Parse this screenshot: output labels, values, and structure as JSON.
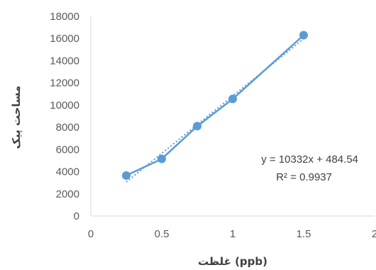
{
  "chart_data": {
    "type": "scatter",
    "x": [
      0.25,
      0.5,
      0.75,
      1,
      1.5
    ],
    "y": [
      3650,
      5150,
      8100,
      10550,
      16300
    ],
    "series": [
      {
        "values": [
          3650,
          5150,
          8100,
          10550,
          16300
        ]
      }
    ],
    "trendline": {
      "slope": 10332,
      "intercept": 484.54,
      "x_range": [
        0.25,
        1.5
      ]
    },
    "annotations": [
      "y = 10332x + 484.54",
      "R² = 0.9937"
    ],
    "xlabel": "غلظت (ppb)",
    "ylabel": "مساحت پیک",
    "xlim": [
      0,
      2
    ],
    "ylim": [
      0,
      18000
    ],
    "xticks": [
      0,
      0.5,
      1,
      1.5,
      2
    ],
    "yticks": [
      0,
      2000,
      4000,
      6000,
      8000,
      10000,
      12000,
      14000,
      16000,
      18000
    ],
    "grid": false,
    "legend": "none",
    "colors": {
      "series": "#5B9BD5",
      "axis": "#D9D9D9"
    }
  }
}
